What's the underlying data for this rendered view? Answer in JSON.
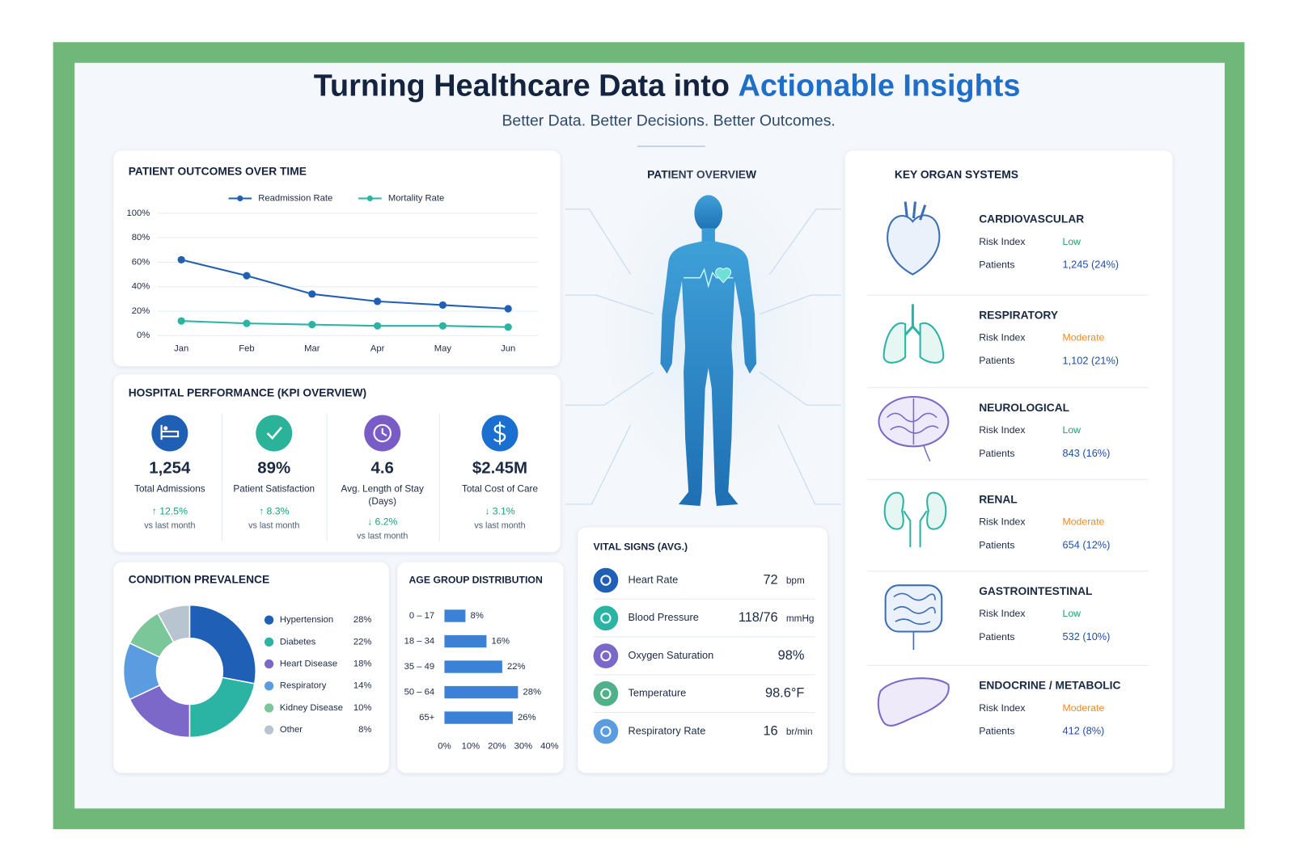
{
  "header": {
    "title": "Turning Healthcare Data into",
    "title_highlight": "Actionable Insights",
    "subtitle": "Better Data. Better Decisions. Better Outcomes."
  },
  "chart_data": [
    {
      "type": "line",
      "title": "PATIENT OUTCOMES OVER TIME",
      "categories": [
        "Jan",
        "Feb",
        "Mar",
        "Apr",
        "May",
        "Jun"
      ],
      "series": [
        {
          "name": "Readmission Rate",
          "color": "#1f5fb5",
          "values": [
            62,
            49,
            34,
            28,
            25,
            22
          ]
        },
        {
          "name": "Mortality Rate",
          "color": "#2bb3a3",
          "values": [
            12,
            10,
            9,
            8,
            8,
            7
          ]
        }
      ],
      "ylim": [
        0,
        100
      ],
      "yticks": [
        {
          "value": 0,
          "label": "0%"
        },
        {
          "value": 20,
          "label": "20%"
        },
        {
          "value": 40,
          "label": "40%"
        },
        {
          "value": 60,
          "label": "60%"
        },
        {
          "value": 80,
          "label": "80%"
        },
        {
          "value": 100,
          "label": "100%"
        }
      ],
      "grid": true
    },
    {
      "type": "pie",
      "title": "CONDITION PREVALENCE",
      "donut": true,
      "categories": [
        "Hypertension",
        "Diabetes",
        "Heart Disease",
        "Respiratory",
        "Kidney Disease",
        "Other"
      ],
      "values": [
        28,
        22,
        18,
        14,
        10,
        8
      ],
      "value_labels": [
        "28%",
        "22%",
        "18%",
        "14%",
        "10%",
        "8%"
      ],
      "colors": [
        "#1f5fb5",
        "#2bb3a3",
        "#7b68c8",
        "#5b9be0",
        "#7cc79a",
        "#b8c4d0"
      ]
    },
    {
      "type": "bar",
      "orientation": "horizontal",
      "title": "AGE GROUP DISTRIBUTION",
      "categories": [
        "0 – 17",
        "18 – 34",
        "35 – 49",
        "50 – 64",
        "65+"
      ],
      "values": [
        8,
        16,
        22,
        28,
        26
      ],
      "value_labels": [
        "8%",
        "16%",
        "22%",
        "28%",
        "26%"
      ],
      "color": "#3b82d6",
      "xlim": [
        0,
        40
      ],
      "xticks": [
        {
          "value": 0,
          "label": "0%"
        },
        {
          "value": 10,
          "label": "10%"
        },
        {
          "value": 20,
          "label": "20%"
        },
        {
          "value": 30,
          "label": "30%"
        },
        {
          "value": 40,
          "label": "40%"
        }
      ]
    }
  ],
  "kpi_panel": {
    "title": "HOSPITAL PERFORMANCE (KPI OVERVIEW)",
    "items": [
      {
        "value": "1,254",
        "label": [
          "Total Admissions"
        ],
        "change": "↑ 12.5%",
        "note": "vs last month"
      },
      {
        "value": "89%",
        "label": [
          "Patient Satisfaction"
        ],
        "change": "↑ 8.3%",
        "note": "vs last month"
      },
      {
        "value": "4.6",
        "label": [
          "Avg. Length of Stay",
          "(Days)"
        ],
        "change": "↓ 6.2%",
        "note": "vs last month"
      },
      {
        "value": "$2.45M",
        "label": [
          "Total Cost of Care"
        ],
        "change": "↓ 3.1%",
        "note": "vs last month"
      }
    ]
  },
  "patient_overview": {
    "title": "PATIENT OVERVIEW"
  },
  "vital_signs": {
    "title": "VITAL SIGNS (AVG.)",
    "rows": [
      {
        "name": "Heart Rate",
        "value": "72",
        "unit": "bpm"
      },
      {
        "name": "Blood Pressure",
        "value": "118/76",
        "unit": "mmHg"
      },
      {
        "name": "Oxygen Saturation",
        "value": "98%"
      },
      {
        "name": "Temperature",
        "value": "98.6°F"
      },
      {
        "name": "Respiratory Rate",
        "value": "16",
        "unit": "br/min"
      }
    ]
  },
  "organ_systems": {
    "title": "KEY ORGAN SYSTEMS",
    "risk_label": "Risk Index",
    "patients_label": "Patients",
    "items": [
      {
        "name": "CARDIOVASCULAR",
        "risk": "Low",
        "risk_color": "#22a06b",
        "patients": "1,245 (24%)"
      },
      {
        "name": "RESPIRATORY",
        "risk": "Moderate",
        "risk_color": "#f08a24",
        "patients": "1,102 (21%)"
      },
      {
        "name": "NEUROLOGICAL",
        "risk": "Low",
        "risk_color": "#22a06b",
        "patients": "843 (16%)"
      },
      {
        "name": "RENAL",
        "risk": "Moderate",
        "risk_color": "#f08a24",
        "patients": "654 (12%)"
      },
      {
        "name": "GASTROINTESTINAL",
        "risk": "Low",
        "risk_color": "#22a06b",
        "patients": "532 (10%)"
      },
      {
        "name": "ENDOCRINE / METABOLIC",
        "risk": "Moderate",
        "risk_color": "#f08a24",
        "patients": "412 (8%)"
      }
    ]
  }
}
